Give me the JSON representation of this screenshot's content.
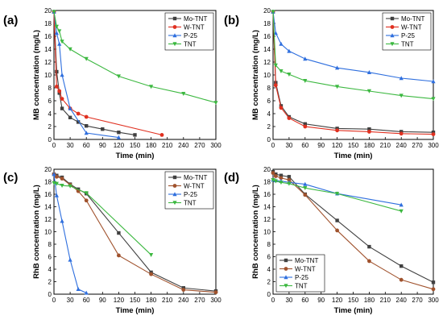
{
  "chart_data": [
    {
      "type": "line",
      "panel_label": "(a)",
      "xlabel": "Time (min)",
      "ylabel": "MB concentration (mg/L)",
      "xlim": [
        0,
        300
      ],
      "ylim": [
        0,
        20
      ],
      "xticks": [
        0,
        30,
        60,
        90,
        120,
        150,
        180,
        210,
        240,
        270,
        300
      ],
      "yticks": [
        0,
        2,
        4,
        6,
        8,
        10,
        12,
        14,
        16,
        18,
        20
      ],
      "legend_position": "top-right",
      "series": [
        {
          "name": "Mo-TNT",
          "color": "#404040",
          "marker": "square",
          "x": [
            0,
            5,
            10,
            15,
            30,
            45,
            60,
            90,
            120,
            150
          ],
          "y": [
            19.8,
            10.5,
            7.2,
            4.8,
            3.4,
            2.7,
            2.1,
            1.6,
            1.1,
            0.7
          ]
        },
        {
          "name": "W-TNT",
          "color": "#e03020",
          "marker": "circle",
          "x": [
            0,
            5,
            10,
            15,
            30,
            45,
            60,
            200
          ],
          "y": [
            19.8,
            8.2,
            7.5,
            6.3,
            4.8,
            4.0,
            3.5,
            0.7
          ]
        },
        {
          "name": "P-25",
          "color": "#2f6fde",
          "marker": "triangle-up",
          "x": [
            0,
            5,
            10,
            15,
            30,
            60,
            120
          ],
          "y": [
            19.8,
            16.5,
            14.8,
            10.0,
            4.8,
            1.0,
            0.3
          ]
        },
        {
          "name": "TNT",
          "color": "#3cb840",
          "marker": "triangle-down",
          "x": [
            0,
            5,
            10,
            15,
            30,
            60,
            120,
            180,
            240,
            300
          ],
          "y": [
            19.8,
            17.5,
            16.8,
            15.2,
            14.0,
            12.5,
            9.8,
            8.2,
            7.1,
            5.7
          ]
        }
      ]
    },
    {
      "type": "line",
      "panel_label": "(b)",
      "xlabel": "Time (min)",
      "ylabel": "MB concentration (mg/L)",
      "xlim": [
        0,
        300
      ],
      "ylim": [
        0,
        20
      ],
      "xticks": [
        0,
        30,
        60,
        90,
        120,
        150,
        180,
        210,
        240,
        270,
        300
      ],
      "yticks": [
        0,
        2,
        4,
        6,
        8,
        10,
        12,
        14,
        16,
        18,
        20
      ],
      "legend_position": "top-right",
      "series": [
        {
          "name": "Mo-TNT",
          "color": "#404040",
          "marker": "square",
          "x": [
            0,
            5,
            15,
            30,
            60,
            120,
            180,
            240,
            300
          ],
          "y": [
            19.8,
            8.8,
            5.2,
            3.5,
            2.4,
            1.7,
            1.6,
            1.2,
            1.1
          ]
        },
        {
          "name": "W-TNT",
          "color": "#e03020",
          "marker": "circle",
          "x": [
            0,
            5,
            15,
            30,
            60,
            120,
            180,
            240,
            300
          ],
          "y": [
            19.8,
            8.4,
            4.9,
            3.3,
            2.0,
            1.4,
            1.2,
            0.9,
            0.8
          ]
        },
        {
          "name": "P-25",
          "color": "#2f6fde",
          "marker": "triangle-up",
          "x": [
            0,
            5,
            15,
            30,
            60,
            120,
            180,
            240,
            300
          ],
          "y": [
            19.8,
            16.5,
            14.8,
            13.7,
            12.5,
            11.1,
            10.4,
            9.5,
            9.0
          ]
        },
        {
          "name": "TNT",
          "color": "#3cb840",
          "marker": "triangle-down",
          "x": [
            0,
            5,
            15,
            30,
            60,
            120,
            180,
            240,
            300
          ],
          "y": [
            19.8,
            11.5,
            10.6,
            10.1,
            9.1,
            8.2,
            7.5,
            6.8,
            6.3
          ]
        }
      ]
    },
    {
      "type": "line",
      "panel_label": "(c)",
      "xlabel": "Time (min)",
      "ylabel": "RhB concentration (mg/L)",
      "xlim": [
        0,
        300
      ],
      "ylim": [
        0,
        20
      ],
      "xticks": [
        0,
        30,
        60,
        90,
        120,
        150,
        180,
        210,
        240,
        270,
        300
      ],
      "yticks": [
        0,
        2,
        4,
        6,
        8,
        10,
        12,
        14,
        16,
        18,
        20
      ],
      "legend_position": "top-right",
      "series": [
        {
          "name": "Mo-TNT",
          "color": "#404040",
          "marker": "square",
          "x": [
            0,
            5,
            15,
            30,
            45,
            60,
            120,
            180,
            240,
            300
          ],
          "y": [
            19.2,
            19.0,
            18.7,
            17.6,
            16.8,
            16.1,
            9.8,
            3.5,
            1.0,
            0.5
          ]
        },
        {
          "name": "W-TNT",
          "color": "#a0522d",
          "marker": "circle",
          "x": [
            0,
            5,
            15,
            30,
            45,
            60,
            120,
            180,
            240,
            300
          ],
          "y": [
            19.2,
            18.8,
            18.5,
            17.5,
            16.5,
            15.0,
            6.2,
            3.2,
            0.7,
            0.3
          ]
        },
        {
          "name": "P-25",
          "color": "#2f6fde",
          "marker": "triangle-up",
          "x": [
            0,
            5,
            15,
            30,
            45,
            60
          ],
          "y": [
            19.2,
            15.8,
            11.7,
            5.5,
            0.8,
            0.2
          ]
        },
        {
          "name": "TNT",
          "color": "#3cb840",
          "marker": "triangle-down",
          "x": [
            0,
            5,
            15,
            30,
            60,
            180
          ],
          "y": [
            17.8,
            17.7,
            17.4,
            17.3,
            16.2,
            6.3
          ]
        }
      ]
    },
    {
      "type": "line",
      "panel_label": "(d)",
      "xlabel": "Time (min)",
      "ylabel": "RhB concentration (mg/L)",
      "xlim": [
        0,
        300
      ],
      "ylim": [
        0,
        20
      ],
      "xticks": [
        0,
        30,
        60,
        90,
        120,
        150,
        180,
        210,
        240,
        270,
        300
      ],
      "yticks": [
        0,
        2,
        4,
        6,
        8,
        10,
        12,
        14,
        16,
        18,
        20
      ],
      "legend_position": "bottom-left",
      "series": [
        {
          "name": "Mo-TNT",
          "color": "#404040",
          "marker": "square",
          "x": [
            0,
            5,
            15,
            30,
            60,
            120,
            180,
            240,
            300
          ],
          "y": [
            19.6,
            19.2,
            19.0,
            18.8,
            16.0,
            11.8,
            7.6,
            4.5,
            1.9
          ]
        },
        {
          "name": "W-TNT",
          "color": "#a0522d",
          "marker": "circle",
          "x": [
            0,
            5,
            15,
            30,
            60,
            120,
            180,
            240,
            300
          ],
          "y": [
            19.4,
            18.9,
            18.6,
            18.3,
            15.9,
            10.2,
            5.3,
            2.3,
            0.8
          ]
        },
        {
          "name": "P-25",
          "color": "#2f6fde",
          "marker": "triangle-up",
          "x": [
            0,
            5,
            15,
            30,
            60,
            120,
            240
          ],
          "y": [
            18.3,
            18.2,
            18.1,
            17.9,
            17.6,
            16.1,
            14.3
          ]
        },
        {
          "name": "TNT",
          "color": "#3cb840",
          "marker": "triangle-down",
          "x": [
            0,
            5,
            15,
            30,
            60,
            120,
            240
          ],
          "y": [
            18.3,
            18.1,
            17.9,
            17.7,
            17.0,
            16.1,
            13.3
          ]
        }
      ]
    }
  ]
}
